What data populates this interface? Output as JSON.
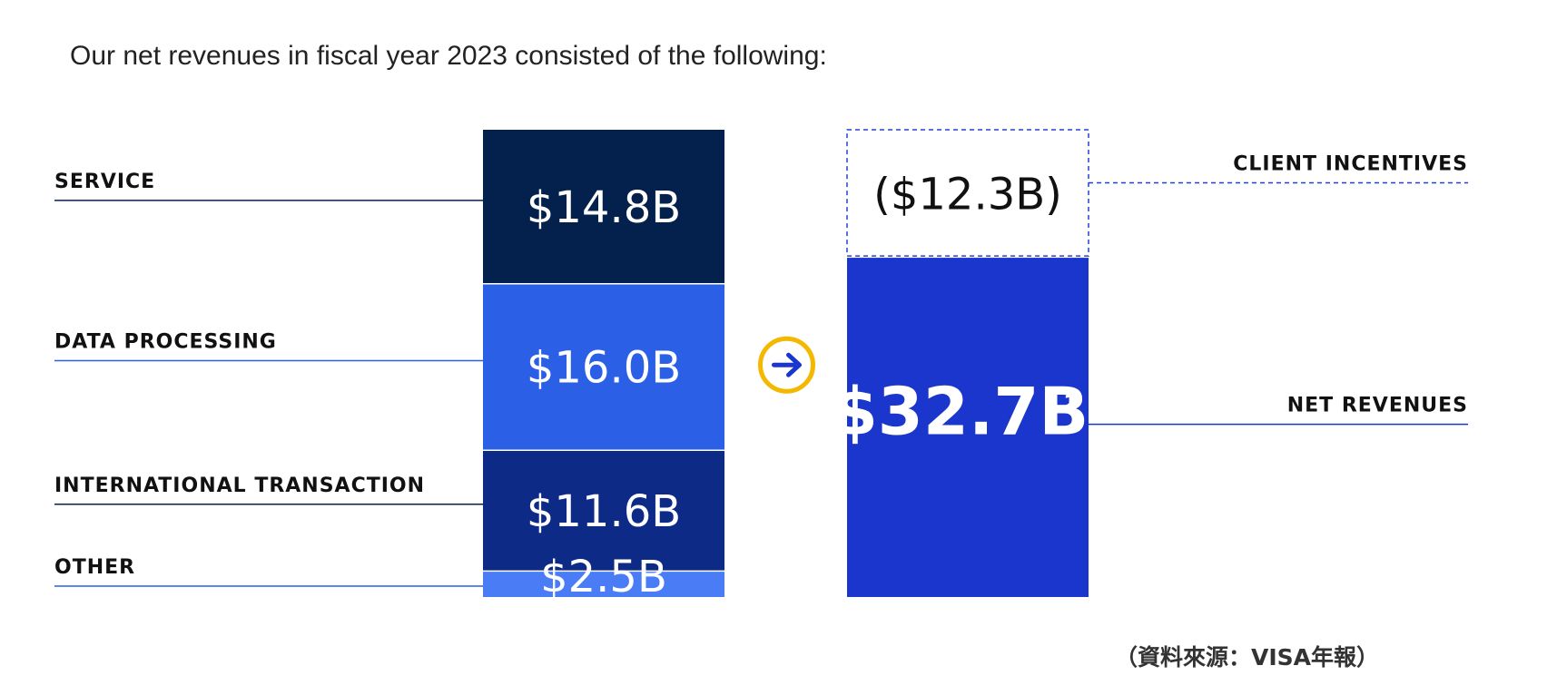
{
  "intro_text": "Our net revenues in fiscal year 2023 consisted of the following:",
  "source_note": "（資料來源：VISA年報）",
  "arrow_icon": "arrow-right-circle-icon",
  "chart_data": {
    "type": "bar",
    "title": "",
    "stacked": true,
    "unit": "$B",
    "gross_revenue_segments": [
      {
        "name": "SERVICE",
        "value": 14.8,
        "label": "$14.8B",
        "color": "#04204d"
      },
      {
        "name": "DATA PROCESSING",
        "value": 16.0,
        "label": "$16.0B",
        "color": "#2a5fe6"
      },
      {
        "name": "INTERNATIONAL TRANSACTION",
        "value": 11.6,
        "label": "$11.6B",
        "color": "#0c2a86"
      },
      {
        "name": "OTHER",
        "value": 2.5,
        "label": "$2.5B",
        "color": "#4a7cf5"
      }
    ],
    "net_revenue_bar": [
      {
        "name": "CLIENT INCENTIVES",
        "value": -12.3,
        "label": "($12.3B)",
        "color": "#2340d4",
        "style": "dashed-outline"
      },
      {
        "name": "NET REVENUES",
        "value": 32.7,
        "label": "$32.7B",
        "superscript": "1",
        "color": "#1a36cc"
      }
    ],
    "colors": {
      "accent_arrow": "#f5b800",
      "arrow_glyph": "#1a36cc",
      "leader_dark": "#04204d",
      "leader_blue": "#2a5fe6"
    }
  }
}
